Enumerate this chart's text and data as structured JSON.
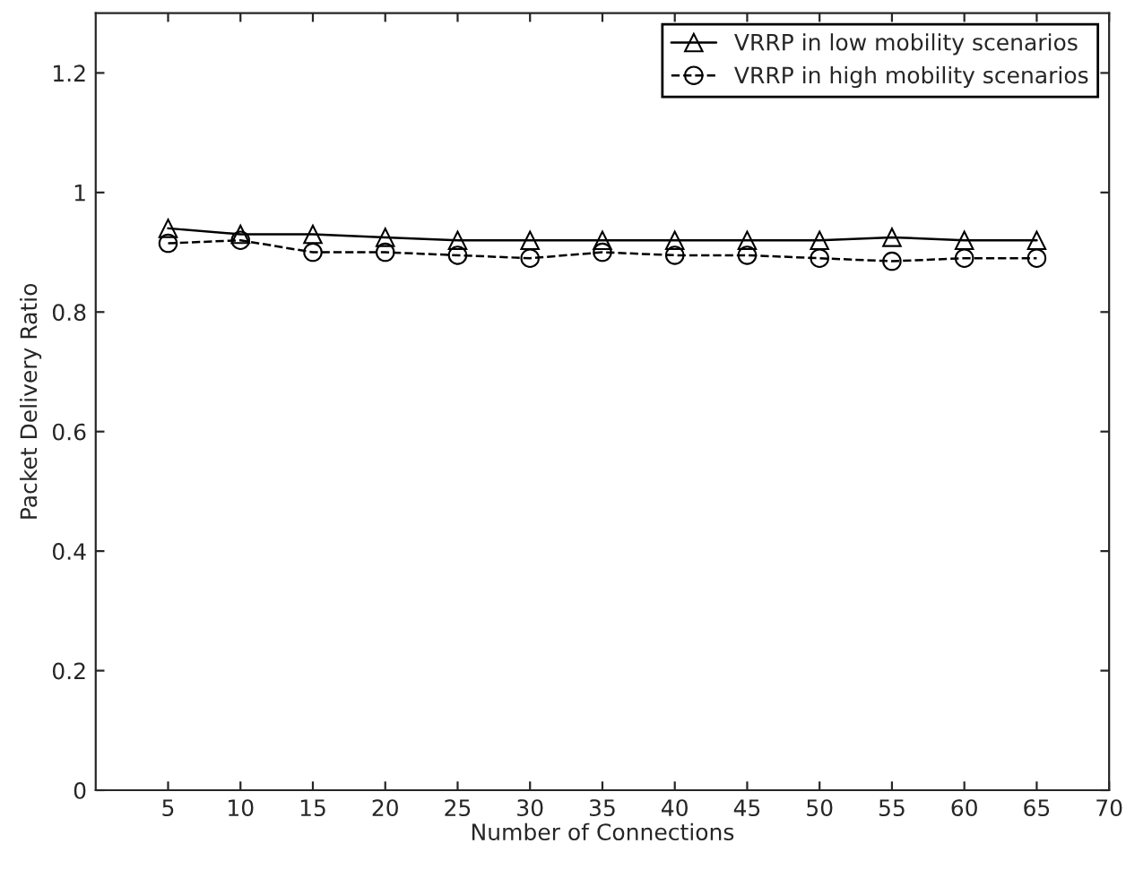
{
  "chart_data": {
    "type": "line",
    "xlabel": "Number of Connections",
    "ylabel": "Packet Delivery Ratio",
    "x": [
      5,
      10,
      15,
      20,
      25,
      30,
      35,
      40,
      45,
      50,
      55,
      60,
      65
    ],
    "series": [
      {
        "name": "VRRP in low mobility scenarios",
        "color": "#000000",
        "marker": "triangle",
        "line_style": "solid",
        "values": [
          0.94,
          0.93,
          0.93,
          0.925,
          0.92,
          0.92,
          0.92,
          0.92,
          0.92,
          0.92,
          0.925,
          0.92,
          0.92
        ]
      },
      {
        "name": "VRRP in high mobility scenarios",
        "color": "#000000",
        "marker": "circle",
        "line_style": "dashed",
        "values": [
          0.915,
          0.92,
          0.9,
          0.9,
          0.895,
          0.89,
          0.9,
          0.895,
          0.895,
          0.89,
          0.885,
          0.89,
          0.89
        ]
      }
    ],
    "xlim": [
      0,
      70
    ],
    "xticks": [
      5,
      10,
      15,
      20,
      25,
      30,
      35,
      40,
      45,
      50,
      55,
      60,
      65,
      70
    ],
    "ylim": [
      0,
      1.3
    ],
    "yticks": [
      0,
      0.2,
      0.4,
      0.6,
      0.8,
      1,
      1.2
    ],
    "grid": false,
    "legend": "top right"
  }
}
